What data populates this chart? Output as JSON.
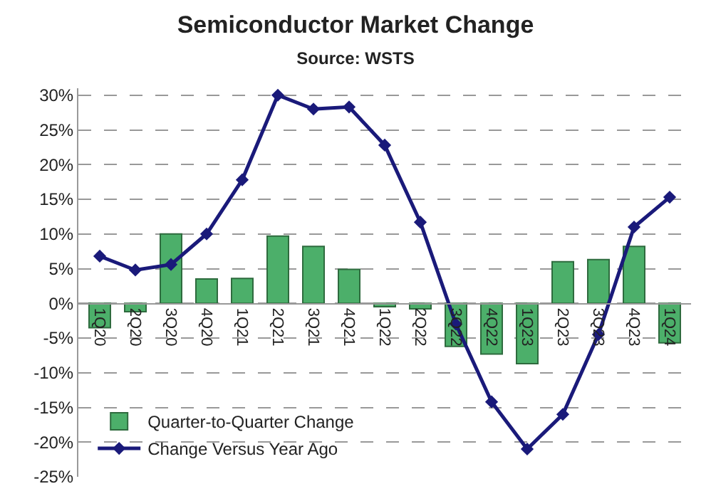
{
  "chart_data": {
    "type": "bar",
    "title": "Semiconductor Market Change",
    "subtitle": "Source: WSTS",
    "categories": [
      "1Q20",
      "2Q20",
      "3Q20",
      "4Q20",
      "1Q21",
      "2Q21",
      "3Q21",
      "4Q21",
      "1Q22",
      "2Q22",
      "3Q22",
      "4Q22",
      "1Q23",
      "2Q23",
      "3Q23",
      "4Q23",
      "1Q24"
    ],
    "series": [
      {
        "name": "Quarter-to-Quarter Change",
        "color": "#4caf6a",
        "values": [
          -3.5,
          -1.2,
          10,
          3.5,
          3.6,
          9.7,
          8.2,
          4.9,
          -0.5,
          -0.8,
          -6.2,
          -7.3,
          -8.7,
          6,
          6.3,
          8.2,
          -5.7
        ]
      },
      {
        "name": "Change Versus Year Ago",
        "type": "line",
        "color": "#1a1a7a",
        "values": [
          6.8,
          4.8,
          5.6,
          10,
          17.8,
          30,
          28,
          28.3,
          22.8,
          11.7,
          -3,
          -14.2,
          -21,
          -16,
          -4.5,
          11,
          15.3
        ]
      }
    ],
    "ylim": [
      -25,
      31
    ],
    "yticks": [
      {
        "value": -25,
        "label": "-25%"
      },
      {
        "value": -20,
        "label": "-20%"
      },
      {
        "value": -15,
        "label": "-15%"
      },
      {
        "value": -10,
        "label": "-10%"
      },
      {
        "value": -5,
        "label": "-5%"
      },
      {
        "value": 0,
        "label": "0%"
      },
      {
        "value": 5,
        "label": "5%"
      },
      {
        "value": 10,
        "label": "10%"
      },
      {
        "value": 15,
        "label": "15%"
      },
      {
        "value": 20,
        "label": "20%"
      },
      {
        "value": 25,
        "label": "25%"
      },
      {
        "value": 30,
        "label": "30%"
      }
    ],
    "grid": "y",
    "legend": "bottom left",
    "marker": "diamond",
    "line_style": "solid"
  }
}
